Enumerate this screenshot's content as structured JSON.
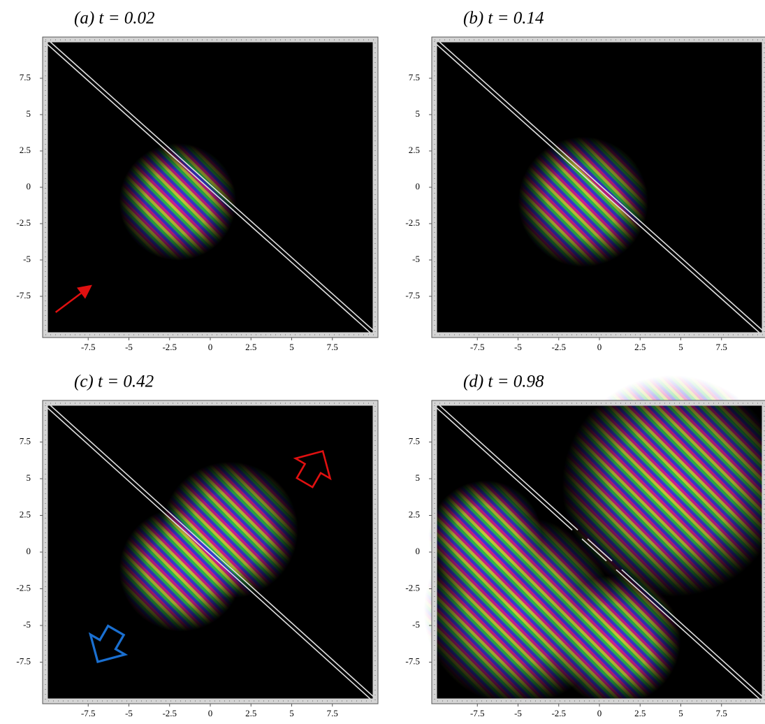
{
  "chart_data": [
    {
      "type": "density",
      "title": "(a) t = 0.02",
      "xlim": [
        -10,
        10
      ],
      "ylim": [
        -10,
        10
      ],
      "xticks": [
        -7.5,
        -5,
        -2.5,
        0,
        2.5,
        5,
        7.5
      ],
      "yticks": [
        7.5,
        5,
        2.5,
        0,
        -2.5,
        -5,
        -7.5
      ]
    },
    {
      "type": "density",
      "title": "(b) t = 0.14",
      "xlim": [
        -10,
        10
      ],
      "ylim": [
        -10,
        10
      ],
      "xticks": [
        -7.5,
        -5,
        -2.5,
        0,
        2.5,
        5,
        7.5
      ],
      "yticks": [
        7.5,
        5,
        2.5,
        0,
        -2.5,
        -5,
        -7.5
      ]
    },
    {
      "type": "density",
      "title": "(c) t = 0.42",
      "xlim": [
        -10,
        10
      ],
      "ylim": [
        -10,
        10
      ],
      "xticks": [
        -7.5,
        -5,
        -2.5,
        0,
        2.5,
        5,
        7.5
      ],
      "yticks": [
        7.5,
        5,
        2.5,
        0,
        -2.5,
        -5,
        -7.5
      ]
    },
    {
      "type": "density",
      "title": "(d) t = 0.98",
      "xlim": [
        -10,
        10
      ],
      "ylim": [
        -10,
        10
      ],
      "xticks": [
        -7.5,
        -5,
        -2.5,
        0,
        2.5,
        5,
        7.5
      ],
      "yticks": [
        7.5,
        5,
        2.5,
        0,
        -2.5,
        -5,
        -7.5
      ]
    }
  ]
}
